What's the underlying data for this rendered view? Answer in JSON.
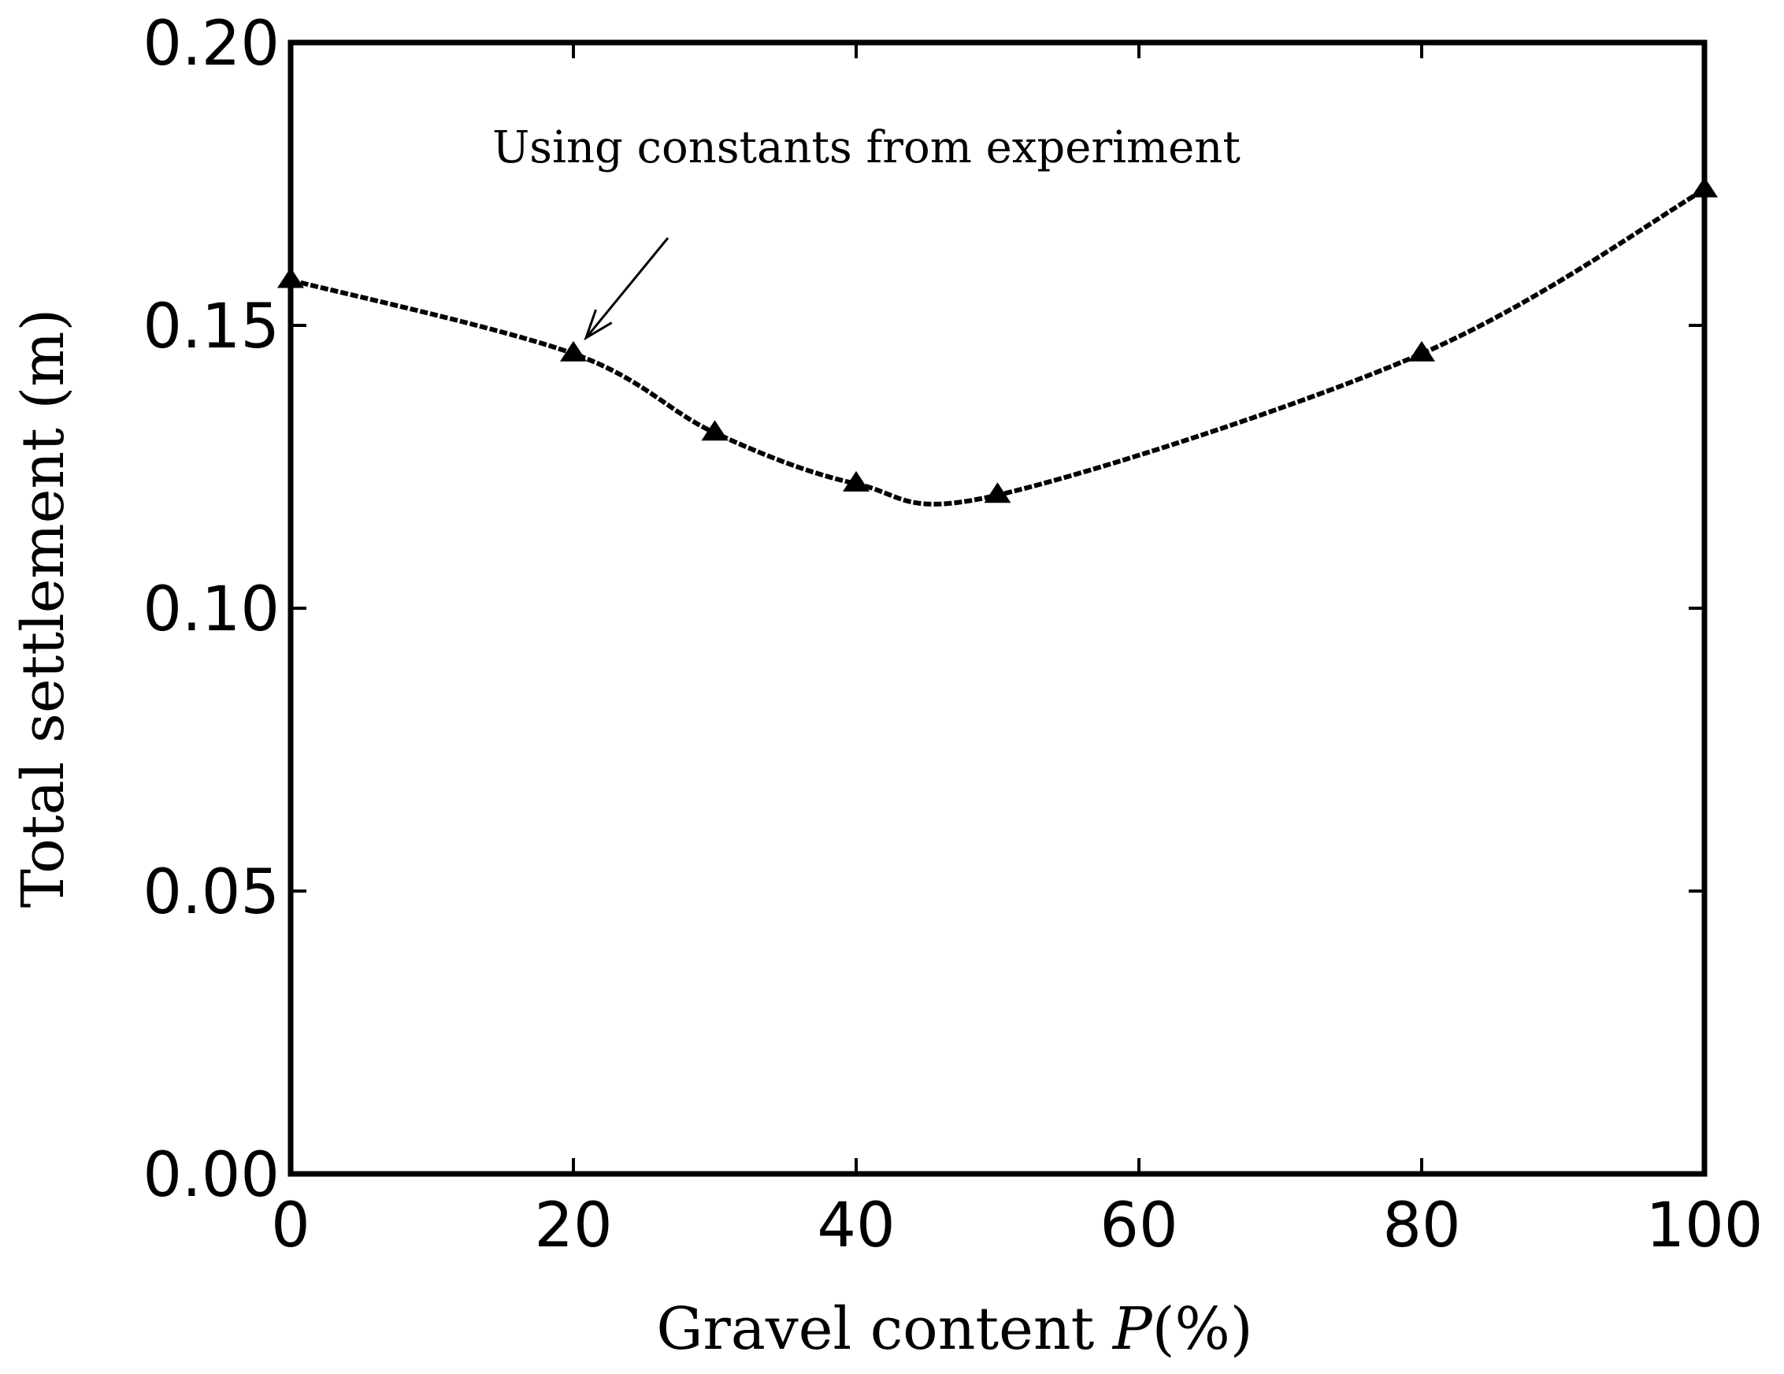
{
  "chart_data": {
    "type": "line",
    "xlabel_prefix": "Gravel content ",
    "xlabel_var": "P",
    "xlabel_suffix": "(%)",
    "ylabel": "Total settlement (m)",
    "xlim": [
      0,
      100
    ],
    "ylim": [
      0.0,
      0.2
    ],
    "x_ticks": [
      0,
      20,
      40,
      60,
      80,
      100
    ],
    "x_tick_labels": [
      "0",
      "20",
      "40",
      "60",
      "80",
      "100"
    ],
    "y_ticks": [
      0.0,
      0.05,
      0.1,
      0.15,
      0.2
    ],
    "y_tick_labels": [
      "0.00",
      "0.05",
      "0.10",
      "0.15",
      "0.20"
    ],
    "grid": false,
    "series": [
      {
        "x": [
          0,
          20,
          30,
          40,
          50,
          80,
          100
        ],
        "y": [
          0.158,
          0.145,
          0.131,
          0.122,
          0.12,
          0.145,
          0.174
        ],
        "marker": "triangle",
        "line_style": "dashed"
      }
    ],
    "annotations": [
      {
        "text": "Using constants from experiment",
        "arrow_to_x": 20,
        "arrow_to_y": 0.145
      }
    ]
  }
}
